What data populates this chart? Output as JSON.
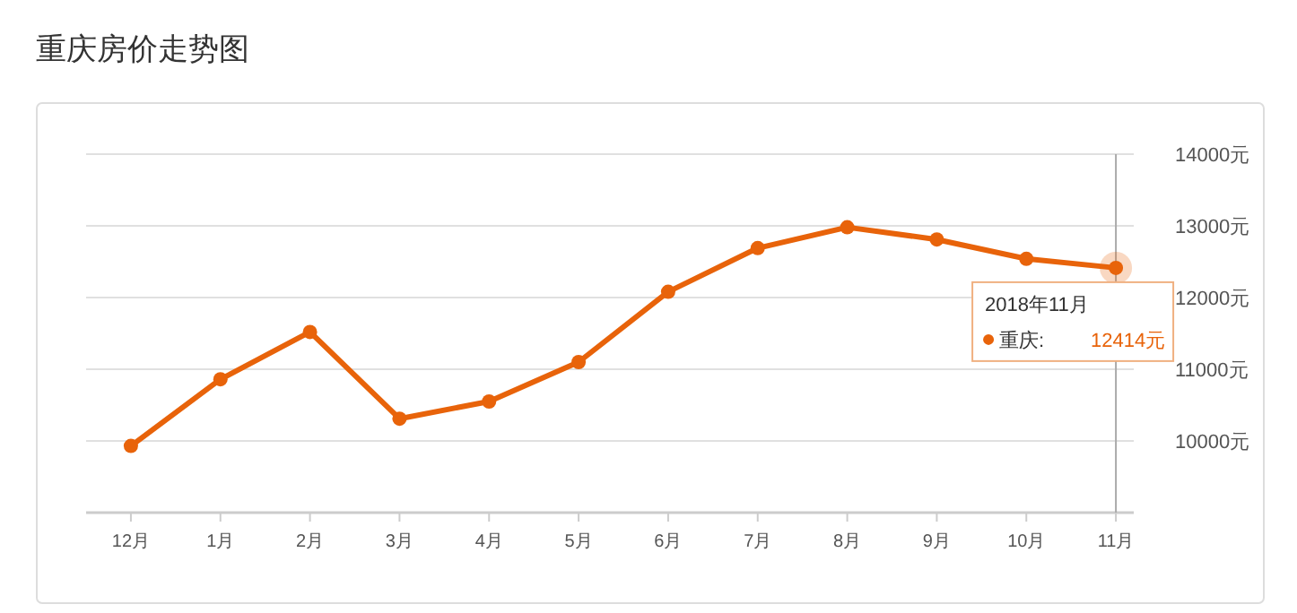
{
  "chart_data": {
    "type": "line",
    "title": "重庆房价走势图",
    "categories": [
      "12月",
      "1月",
      "2月",
      "3月",
      "4月",
      "5月",
      "6月",
      "7月",
      "8月",
      "9月",
      "10月",
      "11月"
    ],
    "series": [
      {
        "name": "重庆:",
        "color": "#e8630a",
        "values": [
          9930,
          10860,
          11520,
          10310,
          10550,
          11100,
          12080,
          12690,
          12980,
          12810,
          12540,
          12414
        ],
        "value_labels": [
          null,
          null,
          null,
          null,
          null,
          null,
          null,
          null,
          null,
          null,
          null,
          "12414元"
        ]
      }
    ],
    "ylim": [
      9000,
      14000
    ],
    "yticks": [
      {
        "value": 9000,
        "label": null
      },
      {
        "value": 10000,
        "label": "10000元"
      },
      {
        "value": 11000,
        "label": "11000元"
      },
      {
        "value": 12000,
        "label": "12000元"
      },
      {
        "value": 13000,
        "label": "13000元"
      },
      {
        "value": 14000,
        "label": "14000元"
      }
    ],
    "grid": "y",
    "marker": "circle",
    "line_style": "solid",
    "legend": "right",
    "ref_lines": [
      {
        "axis": "x",
        "value": "11月",
        "color": "#aaaaaa"
      }
    ],
    "annotations": [
      "2018年11月"
    ]
  }
}
